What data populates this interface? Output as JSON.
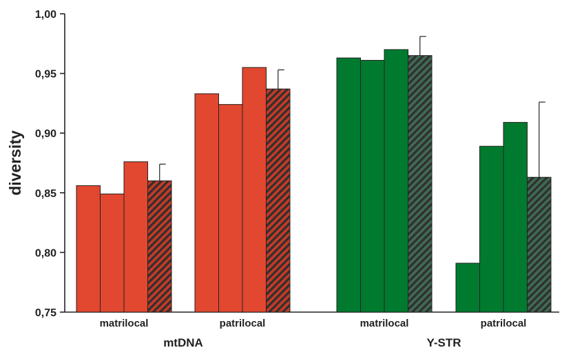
{
  "chart_data": {
    "type": "bar",
    "ylabel": "diversity",
    "ylim": [
      0.75,
      1.0
    ],
    "yticks": [
      0.75,
      0.8,
      0.85,
      0.9,
      0.95,
      1.0
    ],
    "ytick_labels": [
      "0,75",
      "0,80",
      "0,85",
      "0,90",
      "0,95",
      "1,00"
    ],
    "grid": false,
    "groups": [
      {
        "name": "mtDNA",
        "color": "#e2472f",
        "categories": [
          {
            "label": "matrilocal",
            "values": [
              0.856,
              0.849,
              0.876
            ],
            "mean": 0.86,
            "error": 0.014
          },
          {
            "label": "patrilocal",
            "values": [
              0.933,
              0.924,
              0.955
            ],
            "mean": 0.937,
            "error": 0.016
          }
        ]
      },
      {
        "name": "Y-STR",
        "color": "#007a2e",
        "categories": [
          {
            "label": "matrilocal",
            "values": [
              0.963,
              0.961,
              0.97
            ],
            "mean": 0.965,
            "error": 0.016
          },
          {
            "label": "patrilocal",
            "values": [
              0.791,
              0.889,
              0.909
            ],
            "mean": 0.863,
            "error": 0.063
          }
        ]
      }
    ],
    "mean_bar_style": "hatched"
  }
}
